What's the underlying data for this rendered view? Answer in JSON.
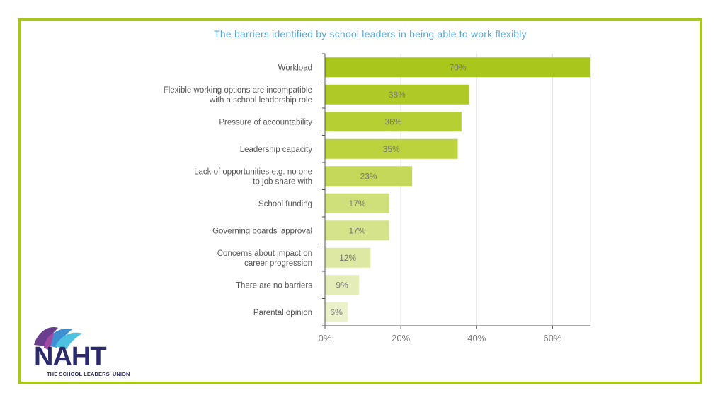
{
  "logo": {
    "name": "NAHT",
    "tagline": "THE SCHOOL LEADERS' UNION"
  },
  "colors": {
    "frame": "#a8c61c",
    "title": "#5aa9d6",
    "bars": [
      "#a8c61c",
      "#afca26",
      "#b6cf33",
      "#bcd33e",
      "#c5d85a",
      "#cfdf7a",
      "#d5e38a",
      "#dde9a3",
      "#e4edb8",
      "#ebf1cb"
    ]
  },
  "chart_data": {
    "type": "bar",
    "orientation": "horizontal",
    "title": "The barriers identified by school leaders in being able to work flexibly",
    "categories": [
      [
        "Workload"
      ],
      [
        "Flexible working options are incompatible",
        "with a school leadership role"
      ],
      [
        "Pressure of accountability"
      ],
      [
        "Leadership capacity"
      ],
      [
        "Lack of opportunities e.g. no one",
        "to job share with"
      ],
      [
        "School funding"
      ],
      [
        "Governing boards' approval"
      ],
      [
        "Concerns about impact on",
        "career progression"
      ],
      [
        "There are no barriers"
      ],
      [
        "Parental opinion"
      ]
    ],
    "values": [
      70,
      38,
      36,
      35,
      23,
      17,
      17,
      12,
      9,
      6
    ],
    "data_labels": [
      "70%",
      "38%",
      "36%",
      "35%",
      "23%",
      "17%",
      "17%",
      "12%",
      "9%",
      "6%"
    ],
    "xlim": [
      0,
      70
    ],
    "xticks": [
      0,
      20,
      40,
      60
    ],
    "xtick_labels": [
      "0%",
      "20%",
      "40%",
      "60%"
    ],
    "grid": true
  }
}
